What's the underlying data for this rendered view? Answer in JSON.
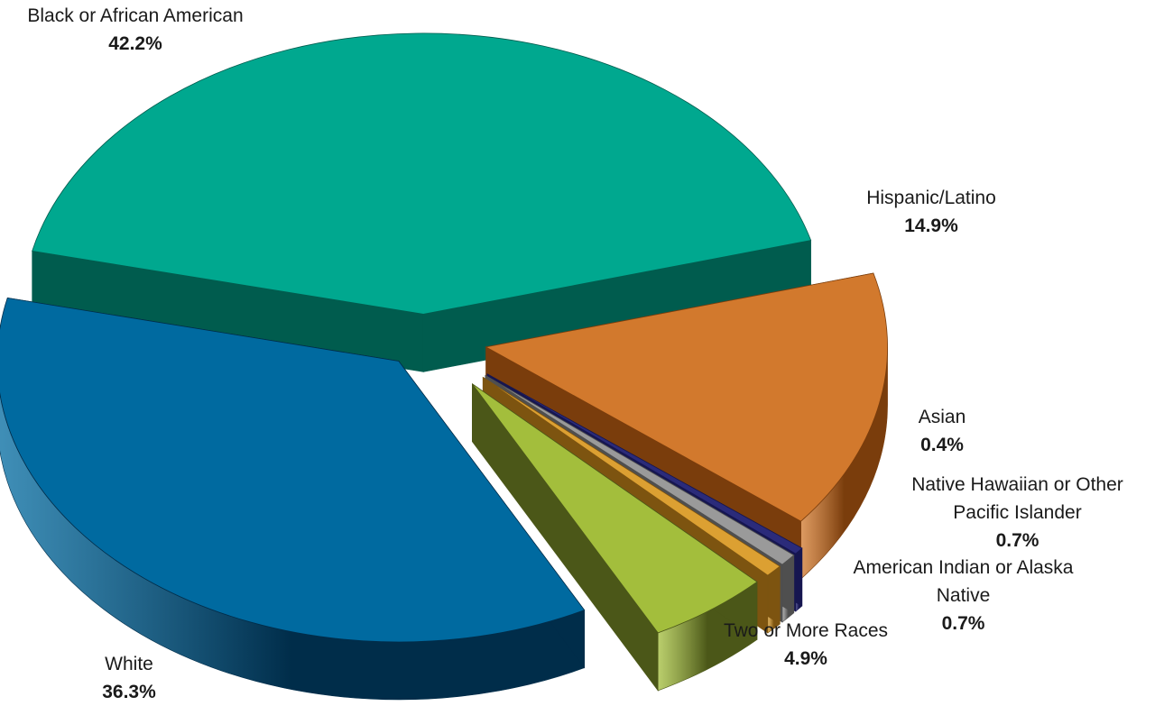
{
  "chart_data": {
    "type": "pie",
    "title": "",
    "series": [
      {
        "label": "Black or African American",
        "value": 42.2,
        "value_label": "42.2%",
        "color": "#00a88f",
        "side": "#005c4e"
      },
      {
        "label": "Hispanic/Latino",
        "value": 14.9,
        "value_label": "14.9%",
        "color": "#d2792d",
        "side": "#7a3d0c"
      },
      {
        "label": "Asian",
        "value": 0.4,
        "value_label": "0.4%",
        "color": "#2b2b7a",
        "side": "#161650"
      },
      {
        "label": "Native Hawaiian or Other Pacific Islander",
        "value": 0.7,
        "value_label": "0.7%",
        "color": "#9a9a9a",
        "side": "#4f4f4f"
      },
      {
        "label": "American Indian or Alaska Native",
        "value": 0.7,
        "value_label": "0.7%",
        "color": "#dca032",
        "side": "#7d5410"
      },
      {
        "label": "Two or More Races",
        "value": 4.9,
        "value_label": "4.9%",
        "color": "#a3be3c",
        "side": "#4b5718"
      },
      {
        "label": "White",
        "value": 36.3,
        "value_label": "36.3%",
        "color": "#006aa0",
        "side": "#002d4a"
      }
    ]
  }
}
